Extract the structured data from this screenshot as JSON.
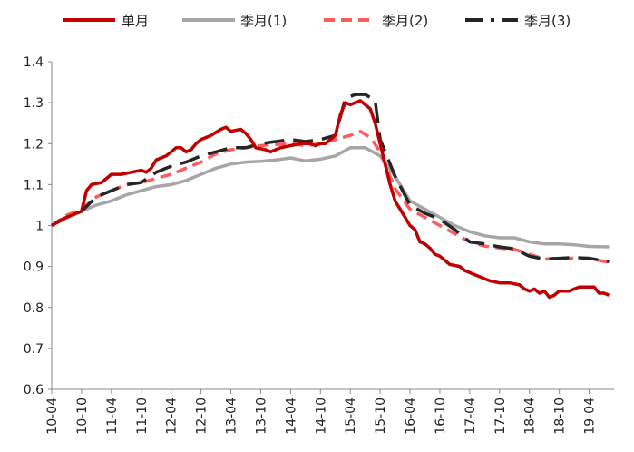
{
  "chart_data": {
    "type": "line",
    "title": "",
    "xlabel": "",
    "ylabel": "",
    "ylim": [
      0.6,
      1.4
    ],
    "yticks": [
      "0.6",
      "0.7",
      "0.8",
      "0.9",
      "1",
      "1.1",
      "1.2",
      "1.3",
      "1.4"
    ],
    "xticks": [
      "10-04",
      "10-10",
      "11-04",
      "11-10",
      "12-04",
      "12-10",
      "13-04",
      "13-10",
      "14-04",
      "14-10",
      "15-04",
      "15-10",
      "16-04",
      "16-10",
      "17-04",
      "17-10",
      "18-04",
      "18-10",
      "19-04"
    ],
    "x_start": "2010-04",
    "n_months": 113,
    "legend_position": "top",
    "series": [
      {
        "name": "单月",
        "color": "#c00000",
        "style": "solid",
        "points": [
          [
            0,
            1.0
          ],
          [
            2,
            1.015
          ],
          [
            4,
            1.025
          ],
          [
            6,
            1.035
          ],
          [
            7,
            1.085
          ],
          [
            8,
            1.1
          ],
          [
            10,
            1.105
          ],
          [
            11,
            1.115
          ],
          [
            12,
            1.125
          ],
          [
            14,
            1.125
          ],
          [
            16,
            1.13
          ],
          [
            18,
            1.135
          ],
          [
            19,
            1.13
          ],
          [
            20,
            1.14
          ],
          [
            21,
            1.16
          ],
          [
            23,
            1.17
          ],
          [
            24,
            1.18
          ],
          [
            25,
            1.19
          ],
          [
            26,
            1.19
          ],
          [
            27,
            1.18
          ],
          [
            28,
            1.185
          ],
          [
            29,
            1.2
          ],
          [
            30,
            1.21
          ],
          [
            32,
            1.22
          ],
          [
            34,
            1.235
          ],
          [
            35,
            1.24
          ],
          [
            36,
            1.23
          ],
          [
            38,
            1.235
          ],
          [
            39,
            1.225
          ],
          [
            40,
            1.21
          ],
          [
            41,
            1.19
          ],
          [
            43,
            1.185
          ],
          [
            44,
            1.18
          ],
          [
            46,
            1.19
          ],
          [
            48,
            1.195
          ],
          [
            50,
            1.2
          ],
          [
            52,
            1.2
          ],
          [
            53,
            1.195
          ],
          [
            54,
            1.2
          ],
          [
            55,
            1.2
          ],
          [
            56,
            1.21
          ],
          [
            57,
            1.22
          ],
          [
            58,
            1.27
          ],
          [
            59,
            1.3
          ],
          [
            60,
            1.295
          ],
          [
            61,
            1.3
          ],
          [
            62,
            1.305
          ],
          [
            63,
            1.295
          ],
          [
            64,
            1.285
          ],
          [
            65,
            1.25
          ],
          [
            66,
            1.2
          ],
          [
            67,
            1.15
          ],
          [
            68,
            1.1
          ],
          [
            69,
            1.06
          ],
          [
            70,
            1.04
          ],
          [
            71,
            1.02
          ],
          [
            72,
            1.0
          ],
          [
            73,
            0.99
          ],
          [
            74,
            0.96
          ],
          [
            75,
            0.955
          ],
          [
            76,
            0.945
          ],
          [
            77,
            0.93
          ],
          [
            78,
            0.925
          ],
          [
            80,
            0.905
          ],
          [
            82,
            0.9
          ],
          [
            83,
            0.89
          ],
          [
            84,
            0.885
          ],
          [
            86,
            0.875
          ],
          [
            88,
            0.865
          ],
          [
            90,
            0.86
          ],
          [
            92,
            0.86
          ],
          [
            94,
            0.855
          ],
          [
            95,
            0.845
          ],
          [
            96,
            0.84
          ],
          [
            97,
            0.845
          ],
          [
            98,
            0.835
          ],
          [
            99,
            0.84
          ],
          [
            100,
            0.825
          ],
          [
            101,
            0.83
          ],
          [
            102,
            0.84
          ],
          [
            104,
            0.84
          ],
          [
            105,
            0.845
          ],
          [
            106,
            0.85
          ],
          [
            108,
            0.85
          ],
          [
            109,
            0.85
          ],
          [
            110,
            0.835
          ],
          [
            111,
            0.835
          ],
          [
            112,
            0.83
          ]
        ]
      },
      {
        "name": "季月(1)",
        "color": "#a6a6a6",
        "style": "solid",
        "points": [
          [
            0,
            1.0
          ],
          [
            3,
            1.02
          ],
          [
            6,
            1.035
          ],
          [
            9,
            1.05
          ],
          [
            12,
            1.06
          ],
          [
            15,
            1.075
          ],
          [
            18,
            1.085
          ],
          [
            21,
            1.095
          ],
          [
            24,
            1.1
          ],
          [
            27,
            1.11
          ],
          [
            30,
            1.125
          ],
          [
            33,
            1.14
          ],
          [
            36,
            1.15
          ],
          [
            39,
            1.155
          ],
          [
            42,
            1.157
          ],
          [
            45,
            1.16
          ],
          [
            48,
            1.165
          ],
          [
            51,
            1.158
          ],
          [
            54,
            1.162
          ],
          [
            57,
            1.17
          ],
          [
            60,
            1.19
          ],
          [
            63,
            1.19
          ],
          [
            66,
            1.17
          ],
          [
            69,
            1.12
          ],
          [
            72,
            1.06
          ],
          [
            75,
            1.04
          ],
          [
            78,
            1.02
          ],
          [
            81,
            1.0
          ],
          [
            84,
            0.985
          ],
          [
            87,
            0.975
          ],
          [
            90,
            0.97
          ],
          [
            93,
            0.97
          ],
          [
            96,
            0.96
          ],
          [
            99,
            0.955
          ],
          [
            102,
            0.955
          ],
          [
            105,
            0.953
          ],
          [
            108,
            0.949
          ],
          [
            112,
            0.948
          ]
        ]
      },
      {
        "name": "季月(2)",
        "color": "#ff5b5b",
        "style": "dashed",
        "points": [
          [
            0,
            1.0
          ],
          [
            3,
            1.025
          ],
          [
            6,
            1.04
          ],
          [
            9,
            1.07
          ],
          [
            12,
            1.085
          ],
          [
            15,
            1.1
          ],
          [
            18,
            1.105
          ],
          [
            21,
            1.115
          ],
          [
            24,
            1.125
          ],
          [
            27,
            1.14
          ],
          [
            30,
            1.155
          ],
          [
            33,
            1.175
          ],
          [
            36,
            1.185
          ],
          [
            39,
            1.19
          ],
          [
            42,
            1.195
          ],
          [
            45,
            1.198
          ],
          [
            48,
            1.2
          ],
          [
            51,
            1.195
          ],
          [
            54,
            1.2
          ],
          [
            57,
            1.21
          ],
          [
            60,
            1.22
          ],
          [
            62,
            1.23
          ],
          [
            64,
            1.215
          ],
          [
            66,
            1.18
          ],
          [
            69,
            1.09
          ],
          [
            72,
            1.04
          ],
          [
            75,
            1.02
          ],
          [
            78,
            1.0
          ],
          [
            81,
            0.98
          ],
          [
            84,
            0.96
          ],
          [
            87,
            0.95
          ],
          [
            90,
            0.945
          ],
          [
            93,
            0.942
          ],
          [
            96,
            0.93
          ],
          [
            99,
            0.918
          ],
          [
            102,
            0.92
          ],
          [
            105,
            0.92
          ],
          [
            108,
            0.92
          ],
          [
            112,
            0.91
          ]
        ]
      },
      {
        "name": "季月(3)",
        "color": "#262626",
        "style": "longdash",
        "points": [
          [
            0,
            1.0
          ],
          [
            3,
            1.02
          ],
          [
            6,
            1.035
          ],
          [
            9,
            1.07
          ],
          [
            12,
            1.085
          ],
          [
            15,
            1.1
          ],
          [
            18,
            1.105
          ],
          [
            21,
            1.13
          ],
          [
            24,
            1.145
          ],
          [
            27,
            1.155
          ],
          [
            30,
            1.17
          ],
          [
            33,
            1.18
          ],
          [
            36,
            1.19
          ],
          [
            39,
            1.19
          ],
          [
            42,
            1.2
          ],
          [
            45,
            1.205
          ],
          [
            48,
            1.21
          ],
          [
            51,
            1.205
          ],
          [
            54,
            1.21
          ],
          [
            57,
            1.22
          ],
          [
            59,
            1.31
          ],
          [
            61,
            1.32
          ],
          [
            63,
            1.32
          ],
          [
            65,
            1.305
          ],
          [
            66,
            1.21
          ],
          [
            69,
            1.12
          ],
          [
            72,
            1.05
          ],
          [
            75,
            1.03
          ],
          [
            78,
            1.015
          ],
          [
            81,
            0.99
          ],
          [
            84,
            0.96
          ],
          [
            87,
            0.955
          ],
          [
            90,
            0.948
          ],
          [
            93,
            0.943
          ],
          [
            96,
            0.925
          ],
          [
            99,
            0.918
          ],
          [
            102,
            0.92
          ],
          [
            105,
            0.922
          ],
          [
            108,
            0.92
          ],
          [
            112,
            0.912
          ]
        ]
      }
    ]
  }
}
